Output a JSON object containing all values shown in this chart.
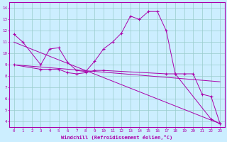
{
  "xlabel": "Windchill (Refroidissement éolien,°C)",
  "bg_color": "#cceeff",
  "line_color": "#aa00aa",
  "grid_color": "#99cccc",
  "xlim": [
    -0.5,
    23.5
  ],
  "ylim": [
    3.5,
    14.5
  ],
  "xticks": [
    0,
    1,
    2,
    3,
    4,
    5,
    6,
    7,
    8,
    9,
    10,
    11,
    12,
    13,
    14,
    15,
    16,
    17,
    18,
    19,
    20,
    21,
    22,
    23
  ],
  "yticks": [
    4,
    5,
    6,
    7,
    8,
    9,
    10,
    11,
    12,
    13,
    14
  ],
  "line1_x": [
    0,
    1,
    3,
    4,
    5,
    6,
    7,
    8,
    9,
    10,
    11,
    12,
    13,
    14,
    15,
    16,
    17,
    18,
    22,
    23
  ],
  "line1_y": [
    11.7,
    11.0,
    9.0,
    10.4,
    10.5,
    9.2,
    8.5,
    8.4,
    9.3,
    10.4,
    11.0,
    11.8,
    13.3,
    13.0,
    13.7,
    13.7,
    12.0,
    8.2,
    4.2,
    3.8
  ],
  "line2_x": [
    0,
    3,
    4,
    5,
    6,
    7,
    8,
    9,
    10,
    17,
    18,
    19,
    20,
    21,
    22,
    23
  ],
  "line2_y": [
    9.0,
    8.6,
    8.6,
    8.6,
    8.3,
    8.2,
    8.3,
    8.5,
    8.5,
    8.2,
    8.2,
    8.2,
    8.2,
    6.4,
    6.2,
    3.8
  ],
  "line3_x": [
    0,
    23
  ],
  "line3_y": [
    11.0,
    3.8
  ],
  "line4_x": [
    0,
    23
  ],
  "line4_y": [
    9.0,
    7.5
  ]
}
